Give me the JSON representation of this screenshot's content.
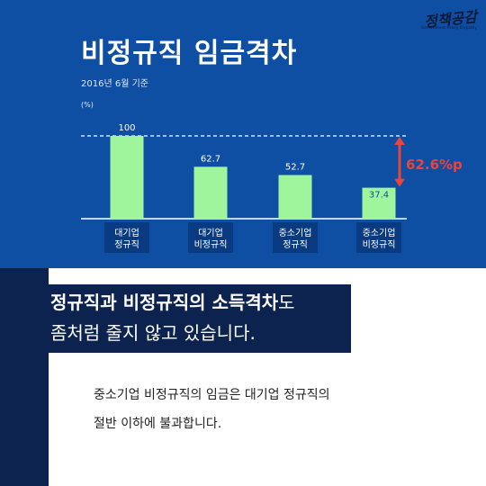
{
  "logo": {
    "text": "정책공감",
    "sub": "Government Policy Empathy"
  },
  "chart_data": {
    "type": "bar",
    "title": "비정규직 임금격차",
    "subtitle": "2016년 6월 기준",
    "unit": "(%)",
    "categories": [
      "대기업\n정규직",
      "대기업\n비정규직",
      "중소기업\n정규직",
      "중소기업\n비정규직"
    ],
    "values": [
      100,
      62.7,
      52.7,
      37.4
    ],
    "data_labels": [
      "100",
      "62.7",
      "52.7",
      "37.4"
    ],
    "ylim": [
      0,
      100
    ],
    "reference_line": 100,
    "gap_annotation": "62.6%p",
    "colors": {
      "bar": "#9ef59c",
      "background": "#0f4fa3",
      "arrow": "#e8453c",
      "annotation": "#e8453c",
      "text": "#ffffff"
    }
  },
  "headline": {
    "line1_bold": "정규직과 비정규직의 소득격차",
    "line1_rest": "도",
    "line2": "좀처럼 줄지 않고 있습니다."
  },
  "body": {
    "line1": "중소기업 비정규직의 임금은 대기업 정규직의",
    "line2": "절반 이하에 불과합니다."
  }
}
